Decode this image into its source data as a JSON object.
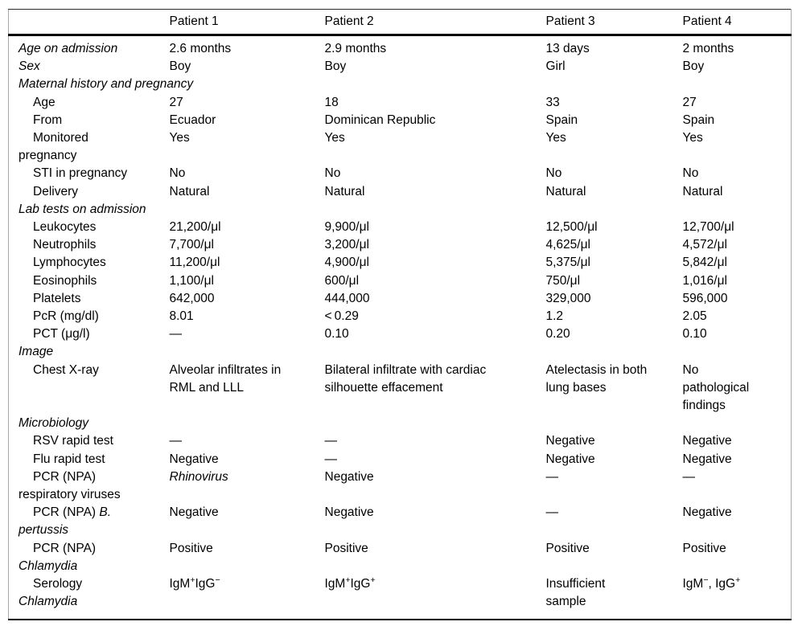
{
  "table": {
    "header": [
      "",
      "Patient 1",
      "Patient 2",
      "Patient 3",
      "Patient 4"
    ],
    "rows": [
      {
        "name": "age-on-admission",
        "indent": false,
        "label": [
          {
            "t": "Age on admission",
            "i": true
          }
        ],
        "values": [
          "2.6 months",
          "2.9 months",
          "13 days",
          "2 months"
        ]
      },
      {
        "name": "sex",
        "indent": false,
        "label": [
          {
            "t": "Sex",
            "i": true
          }
        ],
        "values": [
          "Boy",
          "Boy",
          "Girl",
          "Boy"
        ]
      },
      {
        "name": "section-maternal-history",
        "indent": false,
        "label": [
          {
            "t": "Maternal history and pregnancy",
            "i": true
          }
        ],
        "values": [
          "",
          "",
          "",
          ""
        ]
      },
      {
        "name": "maternal-age",
        "indent": true,
        "label": [
          {
            "t": "Age"
          }
        ],
        "values": [
          "27",
          "18",
          "33",
          "27"
        ]
      },
      {
        "name": "maternal-from",
        "indent": true,
        "label": [
          {
            "t": "From"
          }
        ],
        "values": [
          "Ecuador",
          "Dominican Republic",
          "Spain",
          "Spain"
        ]
      },
      {
        "name": "monitored-pregnancy",
        "indent": true,
        "label": [
          {
            "t": "Monitored\npregnancy"
          }
        ],
        "values": [
          "Yes",
          "Yes",
          "Yes",
          "Yes"
        ]
      },
      {
        "name": "sti-in-pregnancy",
        "indent": true,
        "label": [
          {
            "t": "STI in pregnancy"
          }
        ],
        "values": [
          "No",
          "No",
          "No",
          "No"
        ]
      },
      {
        "name": "delivery",
        "indent": true,
        "label": [
          {
            "t": "Delivery"
          }
        ],
        "values": [
          "Natural",
          "Natural",
          "Natural",
          "Natural"
        ]
      },
      {
        "name": "section-lab-tests",
        "indent": false,
        "label": [
          {
            "t": "Lab tests on admission",
            "i": true
          }
        ],
        "values": [
          "",
          "",
          "",
          ""
        ]
      },
      {
        "name": "leukocytes",
        "indent": true,
        "label": [
          {
            "t": "Leukocytes"
          }
        ],
        "values": [
          "21,200/μl",
          "9,900/μl",
          "12,500/μl",
          "12,700/μl"
        ]
      },
      {
        "name": "neutrophils",
        "indent": true,
        "label": [
          {
            "t": "Neutrophils"
          }
        ],
        "values": [
          "7,700/μl",
          "3,200/μl",
          "4,625/μl",
          "4,572/μl"
        ]
      },
      {
        "name": "lymphocytes",
        "indent": true,
        "label": [
          {
            "t": "Lymphocytes"
          }
        ],
        "values": [
          "11,200/μl",
          "4,900/μl",
          "5,375/μl",
          "5,842/μl"
        ]
      },
      {
        "name": "eosinophils",
        "indent": true,
        "label": [
          {
            "t": "Eosinophils"
          }
        ],
        "values": [
          "1,100/μl",
          "600/μl",
          "750/μl",
          "1,016/μl"
        ]
      },
      {
        "name": "platelets",
        "indent": true,
        "label": [
          {
            "t": "Platelets"
          }
        ],
        "values": [
          "642,000",
          "444,000",
          "329,000",
          "596,000"
        ]
      },
      {
        "name": "pcr-mg-dl",
        "indent": true,
        "label": [
          {
            "t": "PcR (mg/dl)"
          }
        ],
        "values": [
          "8.01",
          "< 0.29",
          "1.2",
          "2.05"
        ]
      },
      {
        "name": "pct-ug-l",
        "indent": true,
        "label": [
          {
            "t": "PCT (μg/l)"
          }
        ],
        "values": [
          "—",
          "0.10",
          "0.20",
          "0.10"
        ]
      },
      {
        "name": "section-image",
        "indent": false,
        "label": [
          {
            "t": "Image",
            "i": true
          }
        ],
        "values": [
          "",
          "",
          "",
          ""
        ]
      },
      {
        "name": "chest-x-ray",
        "indent": true,
        "label": [
          {
            "t": "Chest X-ray"
          }
        ],
        "values": [
          "Alveolar infiltrates in\nRML and LLL",
          "Bilateral infiltrate with cardiac\nsilhouette effacement",
          "Atelectasis in both\nlung bases",
          "No\npathological\nfindings"
        ]
      },
      {
        "name": "section-microbiology",
        "indent": false,
        "label": [
          {
            "t": "Microbiology",
            "i": true
          }
        ],
        "values": [
          "",
          "",
          "",
          ""
        ]
      },
      {
        "name": "rsv-rapid-test",
        "indent": true,
        "label": [
          {
            "t": "RSV rapid test"
          }
        ],
        "values": [
          "—",
          "—",
          "Negative",
          "Negative"
        ]
      },
      {
        "name": "flu-rapid-test",
        "indent": true,
        "label": [
          {
            "t": "Flu rapid test"
          }
        ],
        "values": [
          "Negative",
          "—",
          "Negative",
          "Negative"
        ]
      },
      {
        "name": "pcr-npa-respiratory-viruses",
        "indent": true,
        "label": [
          {
            "t": "PCR (NPA)\nrespiratory viruses"
          }
        ],
        "values": [
          [
            {
              "t": "Rhinovirus",
              "i": true
            }
          ],
          "Negative",
          "—",
          "—"
        ]
      },
      {
        "name": "pcr-npa-b-pertussis",
        "indent": true,
        "label": [
          {
            "t": "PCR (NPA) "
          },
          {
            "t": "B.\npertussis",
            "i": true
          }
        ],
        "values": [
          "Negative",
          "Negative",
          "—",
          "Negative"
        ]
      },
      {
        "name": "pcr-npa-chlamydia",
        "indent": true,
        "label": [
          {
            "t": "PCR (NPA)\n"
          },
          {
            "t": "Chlamydia",
            "i": true
          }
        ],
        "values": [
          "Positive",
          "Positive",
          "Positive",
          "Positive"
        ]
      },
      {
        "name": "serology-chlamydia",
        "indent": true,
        "label": [
          {
            "t": "Serology\n"
          },
          {
            "t": "Chlamydia",
            "i": true
          }
        ],
        "values": [
          [
            {
              "t": "IgM"
            },
            {
              "t": "+",
              "sup": true
            },
            {
              "t": "IgG"
            },
            {
              "t": "−",
              "sup": true
            }
          ],
          [
            {
              "t": "IgM"
            },
            {
              "t": "+",
              "sup": true
            },
            {
              "t": "IgG"
            },
            {
              "t": "+",
              "sup": true
            }
          ],
          "Insufficient\nsample",
          [
            {
              "t": "IgM"
            },
            {
              "t": "−",
              "sup": true
            },
            {
              "t": ", IgG"
            },
            {
              "t": "+",
              "sup": true
            }
          ]
        ]
      }
    ]
  }
}
